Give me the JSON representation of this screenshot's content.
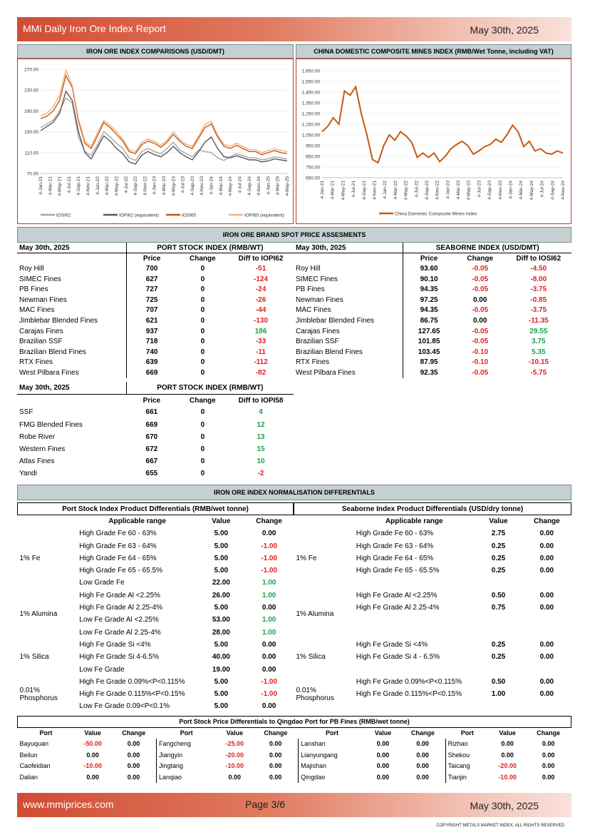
{
  "header": {
    "title": "MMi Daily Iron Ore Index Report",
    "date": "May 30th, 2025"
  },
  "footer": {
    "url": "www.mmiprices.com",
    "page": "Page 3/6",
    "date": "May 30th, 2025",
    "copyright": "COPYRIGHT METALS MARKET INDEX, ALL RIGHTS RESERVED"
  },
  "chart_data": [
    {
      "type": "line",
      "title": "IRON ORE INDEX COMPARISONS (USD/DMT)",
      "ylim": [
        70,
        270
      ],
      "y_ticks": [
        "270.00",
        "230.00",
        "190.00",
        "150.00",
        "110.00",
        "70.00"
      ],
      "x_ticks": [
        "4-Jan-21",
        "4-Mar-21",
        "4-May-21",
        "4-Jul-21",
        "4-Sep-21",
        "4-Nov-21",
        "4-Jan-22",
        "4-Mar-22",
        "4-May-22",
        "4-Jul-22",
        "4-Sep-22",
        "4-Nov-22",
        "4-Jan-23",
        "4-Mar-23",
        "4-May-23",
        "4-Jul-23",
        "4-Sep-23",
        "4-Nov-23",
        "4-Jan-24",
        "4-Mar-24",
        "4-May-24",
        "4-Jul-24",
        "4-Sep-24",
        "4-Nov-24",
        "4-Jan-25",
        "4-Mar-25",
        "4-May-25"
      ],
      "series": [
        {
          "name": "IOSI62",
          "color": "#a6a6a6",
          "values": [
            158,
            165,
            172,
            190,
            215,
            205,
            140,
            112,
            105,
            125,
            150,
            140,
            128,
            118,
            100,
            95,
            112,
            118,
            112,
            108,
            118,
            130,
            115,
            108,
            102,
            115,
            112,
            110,
            100,
            95,
            102,
            108,
            104,
            100,
            100,
            96,
            98,
            102,
            100,
            98
          ]
        },
        {
          "name": "IOPI62 (equivalent)",
          "color": "#595959",
          "values": [
            152,
            160,
            168,
            185,
            228,
            210,
            150,
            110,
            98,
            120,
            142,
            132,
            118,
            108,
            92,
            88,
            105,
            112,
            106,
            102,
            110,
            122,
            110,
            102,
            96,
            112,
            130,
            140,
            118,
            102,
            100,
            104,
            100,
            96,
            96,
            92,
            94,
            98,
            96,
            94
          ]
        },
        {
          "name": "IOSI65",
          "color": "#c55a11",
          "values": [
            175,
            180,
            190,
            210,
            258,
            235,
            170,
            128,
            118,
            142,
            168,
            158,
            145,
            132,
            112,
            108,
            125,
            132,
            128,
            120,
            130,
            145,
            132,
            122,
            118,
            138,
            158,
            165,
            140,
            122,
            118,
            124,
            118,
            112,
            112,
            106,
            110,
            114,
            110,
            108
          ]
        },
        {
          "name": "IOPI65 (equivalent)",
          "color": "#f4b183",
          "values": [
            180,
            186,
            198,
            220,
            268,
            240,
            175,
            132,
            122,
            148,
            172,
            162,
            150,
            136,
            116,
            112,
            130,
            136,
            132,
            124,
            134,
            150,
            136,
            126,
            122,
            142,
            164,
            170,
            144,
            126,
            122,
            128,
            122,
            116,
            116,
            110,
            114,
            118,
            114,
            112
          ]
        }
      ]
    },
    {
      "type": "line",
      "title": "CHINA DOMESTIC COMPOSITE MINES INDEX (RMB/Wet Tonne, including VAT)",
      "ylim": [
        650,
        1650
      ],
      "y_ticks": [
        "1,650.00",
        "1,550.00",
        "1,450.00",
        "1,350.00",
        "1,250.00",
        "1,150.00",
        "1,050.00",
        "950.00",
        "850.00",
        "750.00",
        "650.00"
      ],
      "x_ticks": [
        "4-Jan-21",
        "4-Mar-21",
        "4-May-21",
        "4-Jul-21",
        "4-Sep-21",
        "4-Nov-21",
        "4-Jan-22",
        "4-Mar-22",
        "4-May-22",
        "4-Jul-22",
        "4-Sep-22",
        "4-Nov-22",
        "4-Jan-23",
        "4-Mar-23",
        "4-May-23",
        "4-Jul-23",
        "4-Sep-23",
        "4-Nov-23",
        "4-Jan-24",
        "4-Mar-24",
        "4-May-24",
        "4-Jul-24",
        "4-Sep-24",
        "4-Nov-24"
      ],
      "series": [
        {
          "name": "China Domestic Composite Mines Index",
          "color": "#c55a11",
          "values": [
            1080,
            1130,
            1210,
            1150,
            1460,
            1420,
            1500,
            1250,
            1050,
            820,
            790,
            950,
            1050,
            1000,
            1080,
            1040,
            980,
            840,
            880,
            840,
            880,
            800,
            850,
            920,
            960,
            990,
            950,
            870,
            900,
            940,
            960,
            1010,
            980,
            1050,
            1140,
            1080,
            940,
            990,
            900,
            920,
            880,
            870,
            900,
            880
          ]
        }
      ]
    }
  ],
  "spot": {
    "title": "IRON ORE BRAND SPOT PRICE ASSESMENTS",
    "port": {
      "date": "May 30th, 2025",
      "heading": "PORT STOCK INDEX (RMB/WT)",
      "cols": [
        "Price",
        "Change",
        "Diff to IOPI62"
      ],
      "rows": [
        [
          "Roy Hill",
          "700",
          "0",
          "-51"
        ],
        [
          "SIMEC Fines",
          "627",
          "0",
          "-124"
        ],
        [
          "PB Fines",
          "727",
          "0",
          "-24"
        ],
        [
          "Newman Fines",
          "725",
          "0",
          "-26"
        ],
        [
          "MAC Fines",
          "707",
          "0",
          "-44"
        ],
        [
          "Jimblebar Blended Fines",
          "621",
          "0",
          "-130"
        ],
        [
          "Carajas Fines",
          "937",
          "0",
          "186"
        ],
        [
          "Brazilian SSF",
          "718",
          "0",
          "-33"
        ],
        [
          "Brazilian Blend Fines",
          "740",
          "0",
          "-11"
        ],
        [
          "RTX Fines",
          "639",
          "0",
          "-112"
        ],
        [
          "West Pilbara Fines",
          "669",
          "0",
          "-82"
        ]
      ]
    },
    "seaborne": {
      "date": "May 30th, 2025",
      "heading": "SEABORNE INDEX (USD/DMT)",
      "cols": [
        "Price",
        "Change",
        "Diff to IOSI62"
      ],
      "rows": [
        [
          "Roy Hill",
          "93.60",
          "-0.05",
          "-4.50"
        ],
        [
          "SIMEC Fines",
          "90.10",
          "-0.05",
          "-8.00"
        ],
        [
          "PB Fines",
          "94.35",
          "-0.05",
          "-3.75"
        ],
        [
          "Newman Fines",
          "97.25",
          "0.00",
          "-0.85"
        ],
        [
          "MAC Fines",
          "94.35",
          "-0.05",
          "-3.75"
        ],
        [
          "Jimblebar Blended Fines",
          "86.75",
          "0.00",
          "-11.35"
        ],
        [
          "Carajas Fines",
          "127.65",
          "-0.05",
          "29.55"
        ],
        [
          "Brazilian SSF",
          "101.85",
          "-0.05",
          "3.75"
        ],
        [
          "Brazilian Blend Fines",
          "103.45",
          "-0.10",
          "5.35"
        ],
        [
          "RTX Fines",
          "87.95",
          "-0.10",
          "-10.15"
        ],
        [
          "West Pilbara Fines",
          "92.35",
          "-0.05",
          "-5.75"
        ]
      ]
    },
    "port58": {
      "date": "May 30th, 2025",
      "heading": "PORT STOCK INDEX (RMB/WT)",
      "cols": [
        "Price",
        "Change",
        "Diff to IOPI58"
      ],
      "rows": [
        [
          "SSF",
          "661",
          "0",
          "4"
        ],
        [
          "FMG Blended Fines",
          "669",
          "0",
          "12"
        ],
        [
          "Robe River",
          "670",
          "0",
          "13"
        ],
        [
          "Western Fines",
          "672",
          "0",
          "15"
        ],
        [
          "Atlas Fines",
          "667",
          "0",
          "10"
        ],
        [
          "Yandi",
          "655",
          "0",
          "-2"
        ]
      ]
    }
  },
  "norm": {
    "title": "IRON ORE INDEX NORMALISATION DIFFERENTIALS",
    "port": {
      "heading": "Port Stock Index Product Differentials (RMB/wet tonne)",
      "cols": [
        "Applicable range",
        "Value",
        "Change"
      ],
      "groups": [
        {
          "label": "1% Fe",
          "rows": [
            [
              "High Grade Fe 60 - 63%",
              "5.00",
              "0.00"
            ],
            [
              "High Grade Fe 63 - 64%",
              "5.00",
              "-1.00"
            ],
            [
              "High Grade Fe 64 - 65%",
              "5.00",
              "-1.00"
            ],
            [
              "High Grade Fe 65 - 65.5%",
              "5.00",
              "-1.00"
            ],
            [
              "Low Grade Fe",
              "22.00",
              "1.00"
            ]
          ]
        },
        {
          "label": "1% Alumina",
          "rows": [
            [
              "High Fe Grade Al <2.25%",
              "26.00",
              "1.00"
            ],
            [
              "High Fe Grade Al 2.25-4%",
              "5.00",
              "0.00"
            ],
            [
              "Low Fe Grade Al <2.25%",
              "53.00",
              "1.00"
            ],
            [
              "Low Fe Grade Al 2.25-4%",
              "28.00",
              "1.00"
            ]
          ]
        },
        {
          "label": "1% Silica",
          "rows": [
            [
              "High Fe Grade Si <4%",
              "5.00",
              "0.00"
            ],
            [
              "High Fe Grade Si 4-6.5%",
              "40.00",
              "0.00"
            ],
            [
              "Low Fe Grade",
              "19.00",
              "0.00"
            ]
          ]
        },
        {
          "label": "0.01% Phosphorus",
          "rows": [
            [
              "High Fe Grade 0.09%<P<0.115%",
              "5.00",
              "-1.00"
            ],
            [
              "High Fe Grade 0.115%<P<0.15%",
              "5.00",
              "-1.00"
            ],
            [
              "Low Fe Grade 0.09<P<0.1%",
              "5.00",
              "0.00"
            ]
          ]
        }
      ]
    },
    "seaborne": {
      "heading": "Seaborne Index Product Differentials (USD/dry tonne)",
      "cols": [
        "Applicable range",
        "Value",
        "Change"
      ],
      "groups": [
        {
          "label": "1% Fe",
          "rows": [
            [
              "High Grade Fe 60 - 63%",
              "2.75",
              "0.00"
            ],
            [
              "High Grade Fe 63 - 64%",
              "0.25",
              "0.00"
            ],
            [
              "High Grade Fe 64 - 65%",
              "0.25",
              "0.00"
            ],
            [
              "High Grade Fe 65 - 65.5%",
              "0.25",
              "0.00"
            ],
            [
              "",
              "",
              ""
            ]
          ]
        },
        {
          "label": "1% Alumina",
          "rows": [
            [
              "High Fe Grade Al <2.25%",
              "0.50",
              "0.00"
            ],
            [
              "High Fe Grade Al 2.25-4%",
              "0.75",
              "0.00"
            ],
            [
              "",
              "",
              ""
            ],
            [
              "",
              "",
              ""
            ]
          ]
        },
        {
          "label": "1% Silica",
          "rows": [
            [
              "High Fe Grade Si <4%",
              "0.25",
              "0.00"
            ],
            [
              "High Fe Grade Si 4 - 6.5%",
              "0.25",
              "0.00"
            ],
            [
              "",
              "",
              ""
            ]
          ]
        },
        {
          "label": "0.01% Phosphorus",
          "rows": [
            [
              "High Fe Grade 0.09%<P<0.115%",
              "0.50",
              "0.00"
            ],
            [
              "High Fe Grade 0.115%<P<0.15%",
              "1.00",
              "0.00"
            ],
            [
              "",
              "",
              ""
            ]
          ]
        }
      ]
    }
  },
  "qingdao": {
    "heading": "Port Stock Price Differentials to Qingdao Port for PB Fines (RMB/wet tonne)",
    "cols": [
      "Port",
      "Value",
      "Change"
    ],
    "rows": [
      [
        [
          "Bayuquan",
          "-50.00",
          "0.00"
        ],
        [
          "Fangcheng",
          "-25.00",
          "0.00"
        ],
        [
          "Lanshan",
          "0.00",
          "0.00"
        ],
        [
          "Rizhao",
          "0.00",
          "0.00"
        ]
      ],
      [
        [
          "Beilun",
          "0.00",
          "0.00"
        ],
        [
          "Jiangyin",
          "-20.00",
          "0.00"
        ],
        [
          "Lianyungang",
          "0.00",
          "0.00"
        ],
        [
          "Shekou",
          "0.00",
          "0.00"
        ]
      ],
      [
        [
          "Caofeidian",
          "-10.00",
          "0.00"
        ],
        [
          "Jingtang",
          "-10.00",
          "0.00"
        ],
        [
          "Majishan",
          "0.00",
          "0.00"
        ],
        [
          "Taicang",
          "-20.00",
          "0.00"
        ]
      ],
      [
        [
          "Dalian",
          "0.00",
          "0.00"
        ],
        [
          "Lanqiao",
          "0.00",
          "0.00"
        ],
        [
          "Qingdao",
          "0.00",
          "0.00"
        ],
        [
          "Tianjin",
          "-10.00",
          "0.00"
        ]
      ]
    ]
  }
}
